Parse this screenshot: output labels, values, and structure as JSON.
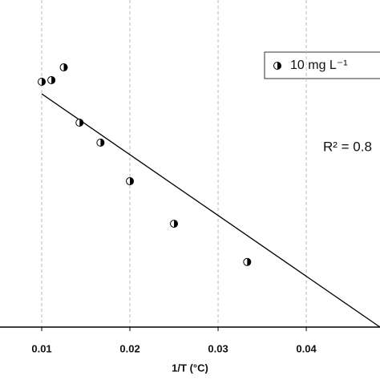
{
  "chart_data": {
    "type": "scatter",
    "x_label": "1/T (°C)",
    "annotation": "R² = 0.8",
    "xlim": [
      0.00527,
      0.04836
    ],
    "xticks": [
      0.01,
      0.02,
      0.03,
      0.04
    ],
    "ylim": [
      0,
      1
    ],
    "grid": true,
    "legend": "top-right",
    "series": [
      {
        "name": "10 mg L⁻¹",
        "color": "#000000",
        "x": [
          0.01,
          0.0111,
          0.0125,
          0.01429,
          0.01667,
          0.02,
          0.025,
          0.0333
        ],
        "values": [
          0.75,
          0.755,
          0.794,
          0.625,
          0.564,
          0.446,
          0.316,
          0.199
        ]
      }
    ],
    "fit": {
      "color": "#000000",
      "x": [
        0.01,
        0.04836
      ],
      "values": [
        0.713,
        0
      ]
    }
  }
}
